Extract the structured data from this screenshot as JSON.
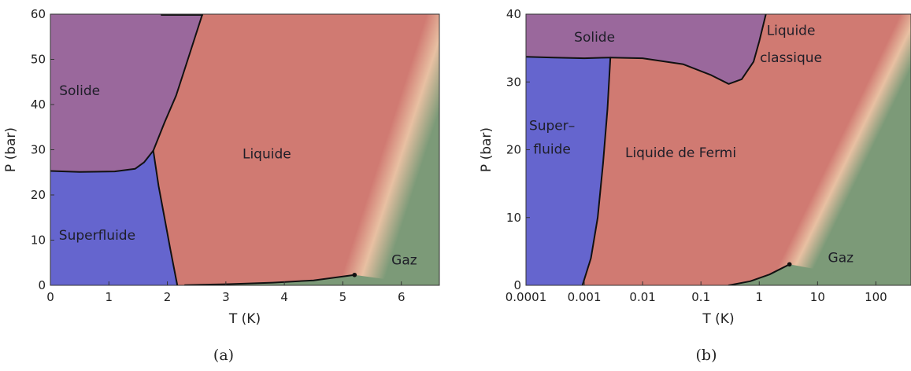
{
  "colors": {
    "solid": "#9a689c",
    "superfluid": "#6565ce",
    "liquid": "#d07a72",
    "gas": "#7c9a78",
    "crossover": "#e8c0a2",
    "boundary": "#111111"
  },
  "chart_data": [
    {
      "id": "a",
      "type": "area",
      "caption": "(a)",
      "xlabel": "T (K)",
      "ylabel": "P (bar)",
      "xscale": "linear",
      "xlim": [
        0,
        6.65
      ],
      "ylim": [
        0,
        60
      ],
      "xticks": [
        0,
        1,
        2,
        3,
        4,
        5,
        6
      ],
      "xtick_labels": [
        "0",
        "1",
        "2",
        "3",
        "4",
        "5",
        "6"
      ],
      "yticks": [
        0,
        10,
        20,
        30,
        40,
        50,
        60
      ],
      "ytick_labels": [
        "0",
        "10",
        "20",
        "30",
        "40",
        "50",
        "60"
      ],
      "regions": [
        {
          "key": "solid",
          "label": "Solide",
          "label_at": [
            0.5,
            43
          ]
        },
        {
          "key": "liquid",
          "label": "Liquide",
          "label_at": [
            3.7,
            29
          ]
        },
        {
          "key": "superfluid",
          "label": "Superfluide",
          "label_at": [
            0.8,
            11
          ]
        },
        {
          "key": "gas",
          "label": "Gaz",
          "label_at": [
            6.05,
            5.5
          ]
        }
      ],
      "boundaries": {
        "melting": [
          [
            1.76,
            29.8
          ],
          [
            1.95,
            36
          ],
          [
            2.15,
            42
          ],
          [
            2.3,
            48
          ],
          [
            2.45,
            54
          ],
          [
            2.6,
            60
          ]
        ],
        "solid_superfluid": [
          [
            0,
            25.3
          ],
          [
            0.5,
            25.1
          ],
          [
            1.1,
            25.2
          ],
          [
            1.45,
            25.8
          ],
          [
            1.6,
            27.2
          ],
          [
            1.76,
            29.8
          ]
        ],
        "lambda_line": [
          [
            1.76,
            29.8
          ],
          [
            1.85,
            22
          ],
          [
            1.95,
            15
          ],
          [
            2.05,
            8
          ],
          [
            2.17,
            0
          ]
        ],
        "vapor": [
          [
            2.3,
            0.05
          ],
          [
            3,
            0.25
          ],
          [
            3.8,
            0.6
          ],
          [
            4.5,
            1.1
          ],
          [
            5.2,
            2.3
          ]
        ]
      },
      "critical_point": [
        5.2,
        2.3
      ]
    },
    {
      "id": "b",
      "type": "area",
      "caption": "(b)",
      "xlabel": "T (K)",
      "ylabel": "P (bar)",
      "xscale": "log",
      "xlim": [
        0.0001,
        400
      ],
      "ylim": [
        0,
        40
      ],
      "xticks": [
        0.0001,
        0.001,
        0.01,
        0.1,
        1,
        10,
        100
      ],
      "xtick_labels": [
        "0.0001",
        "0.001",
        "0.01",
        "0.1",
        "1",
        "10",
        "100"
      ],
      "yticks": [
        0,
        10,
        20,
        30,
        40
      ],
      "ytick_labels": [
        "0",
        "10",
        "20",
        "30",
        "40"
      ],
      "regions": [
        {
          "key": "solid",
          "label": "Solide",
          "label_at": [
            0.0015,
            36.5
          ]
        },
        {
          "key": "liquid",
          "label": "Liquide de Fermi",
          "label_at": [
            0.045,
            19.5
          ]
        },
        {
          "key": "superfluid",
          "label": "Super–",
          "label_at": [
            0.00028,
            23.5
          ]
        },
        {
          "key": "superfluid",
          "label": "fluide",
          "label_at": [
            0.00028,
            20
          ]
        },
        {
          "key": "liquid",
          "label": "Liquide",
          "label_at": [
            3.5,
            37.5
          ]
        },
        {
          "key": "liquid",
          "label": "classique",
          "label_at": [
            3.5,
            33.5
          ]
        },
        {
          "key": "gas",
          "label": "Gaz",
          "label_at": [
            25,
            4
          ]
        }
      ],
      "boundaries": {
        "melting": [
          [
            0.0028,
            33.6
          ],
          [
            0.01,
            33.5
          ],
          [
            0.05,
            32.6
          ],
          [
            0.15,
            31
          ],
          [
            0.3,
            29.7
          ],
          [
            0.5,
            30.4
          ],
          [
            0.8,
            33
          ],
          [
            1.0,
            36
          ],
          [
            1.3,
            40
          ]
        ],
        "solid_superfluid": [
          [
            0.0001,
            33.7
          ],
          [
            0.0003,
            33.6
          ],
          [
            0.001,
            33.5
          ],
          [
            0.0028,
            33.6
          ]
        ],
        "superfluid_transition": [
          [
            0.0028,
            33.6
          ],
          [
            0.0025,
            26
          ],
          [
            0.0021,
            18
          ],
          [
            0.0017,
            10
          ],
          [
            0.0013,
            4
          ],
          [
            0.00093,
            0
          ]
        ],
        "vapor": [
          [
            0.3,
            0
          ],
          [
            0.7,
            0.6
          ],
          [
            1.5,
            1.6
          ],
          [
            3.3,
            3.1
          ]
        ]
      },
      "critical_point": [
        3.3,
        3.1
      ]
    }
  ]
}
